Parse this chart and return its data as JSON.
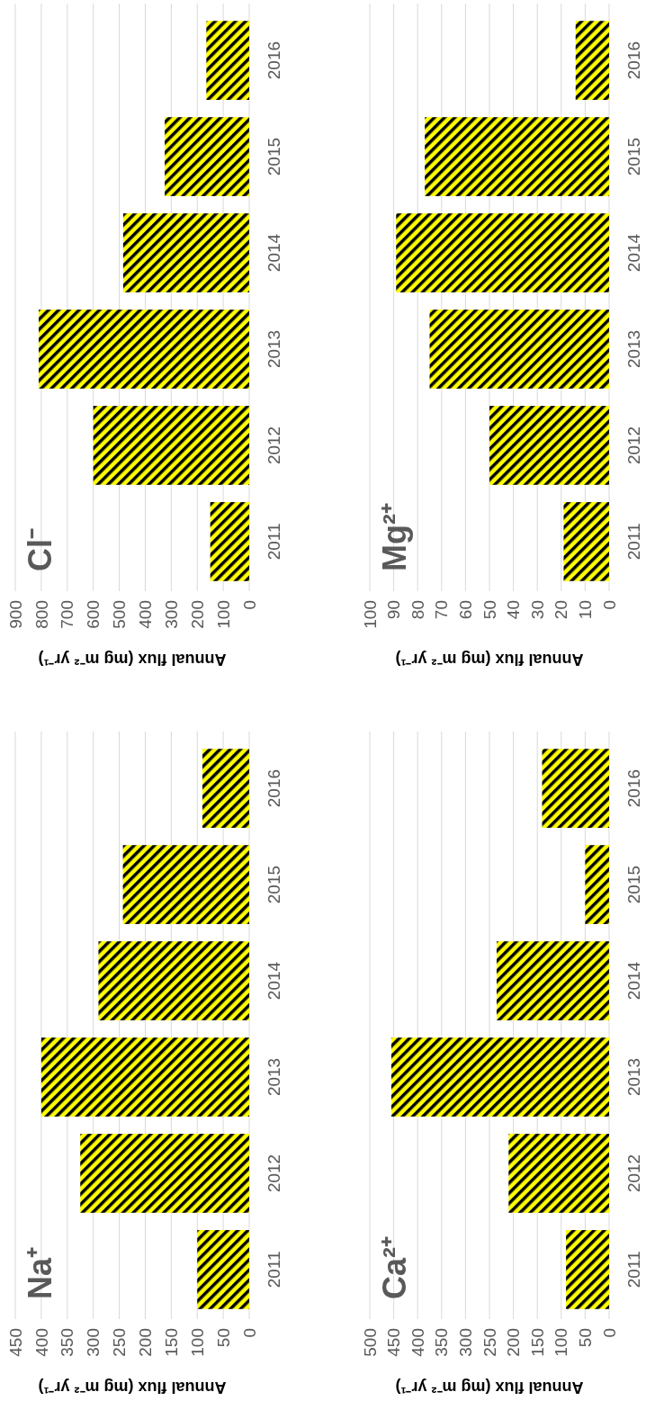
{
  "chart_data": [
    {
      "type": "bar",
      "orientation": "horizontal",
      "title": "Na⁺",
      "xlabel": "Annual flux (mg m⁻² yr⁻¹)",
      "categories": [
        "2016",
        "2015",
        "2014",
        "2013",
        "2012",
        "2011"
      ],
      "series": [
        {
          "color": "#ffff00",
          "values": [
            90,
            243,
            290,
            400,
            325,
            100
          ]
        }
      ],
      "xlim": [
        450,
        0
      ],
      "xticks": [
        450,
        400,
        350,
        300,
        250,
        200,
        150,
        100,
        50,
        0
      ],
      "grid": "x"
    },
    {
      "type": "bar",
      "orientation": "horizontal",
      "title": "Cl⁻",
      "xlabel": "Annual flux (mg m⁻² yr⁻¹)",
      "categories": [
        "2016",
        "2015",
        "2014",
        "2013",
        "2012",
        "2011"
      ],
      "series": [
        {
          "color": "#ffff00",
          "values": [
            165,
            325,
            485,
            810,
            600,
            150
          ]
        }
      ],
      "xlim": [
        900,
        0
      ],
      "xticks": [
        900,
        800,
        700,
        600,
        500,
        400,
        300,
        200,
        100,
        0
      ],
      "grid": "x"
    },
    {
      "type": "bar",
      "orientation": "horizontal",
      "title": "Ca²⁺",
      "xlabel": "Annual flux (mg m⁻² yr⁻¹)",
      "categories": [
        "2016",
        "2015",
        "2014",
        "2013",
        "2012",
        "2011"
      ],
      "series": [
        {
          "color": "#ffff00",
          "values": [
            140,
            50,
            235,
            455,
            210,
            90
          ]
        }
      ],
      "xlim": [
        500,
        0
      ],
      "xticks": [
        500,
        450,
        400,
        350,
        300,
        250,
        200,
        150,
        100,
        50,
        0
      ],
      "grid": "x"
    },
    {
      "type": "bar",
      "orientation": "horizontal",
      "title": "Mg²⁺",
      "xlabel": "Annual flux (mg m⁻² yr⁻¹)",
      "categories": [
        "2016",
        "2015",
        "2014",
        "2013",
        "2012",
        "2011"
      ],
      "series": [
        {
          "color": "#ffff00",
          "values": [
            14,
            77,
            89,
            75,
            50,
            19
          ]
        }
      ],
      "xlim": [
        100,
        0
      ],
      "xticks": [
        100,
        90,
        80,
        70,
        60,
        50,
        40,
        30,
        20,
        10,
        0
      ],
      "grid": "x"
    }
  ]
}
